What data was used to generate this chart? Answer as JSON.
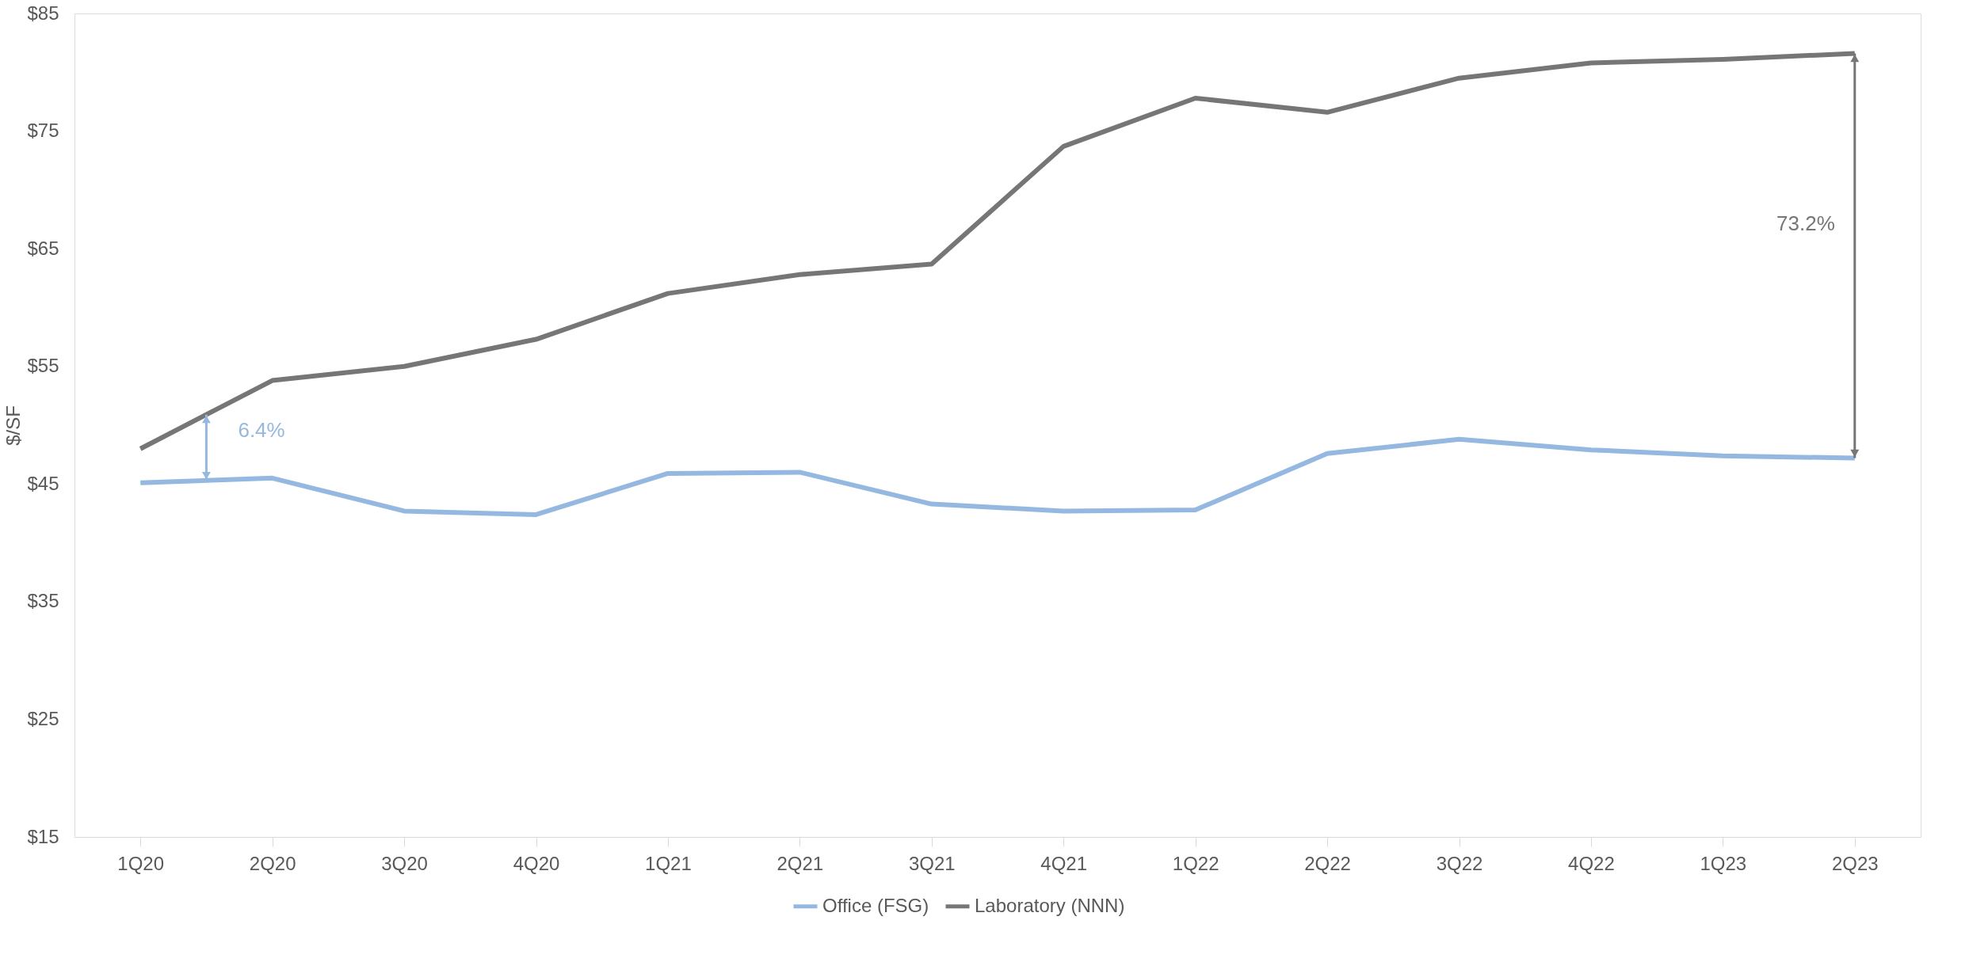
{
  "chart_data": {
    "type": "line",
    "ylabel": "$/SF",
    "categories": [
      "1Q20",
      "2Q20",
      "3Q20",
      "4Q20",
      "1Q21",
      "2Q21",
      "3Q21",
      "4Q21",
      "1Q22",
      "2Q22",
      "3Q22",
      "4Q22",
      "1Q23",
      "2Q23"
    ],
    "series": [
      {
        "name": "Office (FSG)",
        "color": "#95b8e0",
        "values": [
          45.1,
          45.5,
          42.7,
          42.4,
          45.9,
          46.0,
          43.3,
          42.7,
          42.8,
          47.6,
          48.8,
          47.9,
          47.4,
          47.2
        ]
      },
      {
        "name": "Laboratory (NNN)",
        "color": "#767676",
        "values": [
          48.0,
          53.8,
          55.0,
          57.3,
          61.2,
          62.8,
          63.7,
          73.7,
          77.8,
          76.6,
          79.5,
          80.8,
          81.1,
          81.6
        ]
      }
    ],
    "ylim": [
      15,
      85
    ],
    "yticks": [
      {
        "value": 15,
        "label": "$15"
      },
      {
        "value": 25,
        "label": "$25"
      },
      {
        "value": 35,
        "label": "$35"
      },
      {
        "value": 45,
        "label": "$45"
      },
      {
        "value": 55,
        "label": "$55"
      },
      {
        "value": 65,
        "label": "$65"
      },
      {
        "value": 75,
        "label": "$75"
      },
      {
        "value": 85,
        "label": "$85"
      }
    ],
    "annotations": [
      "6.4%",
      "73.2%"
    ],
    "grid": false,
    "legend": "bottom",
    "marker": "none",
    "line_style": "solid"
  }
}
